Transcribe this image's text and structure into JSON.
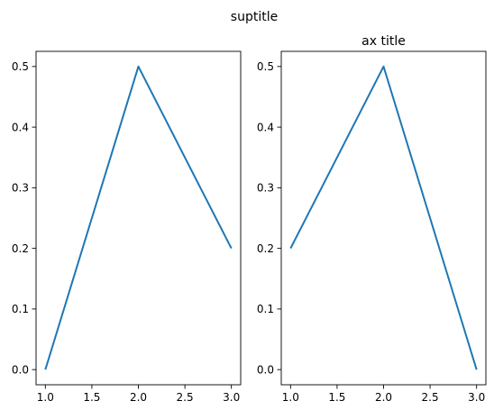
{
  "figure": {
    "suptitle": "suptitle"
  },
  "colors": {
    "series": "#1f77b4",
    "axes": "#000000",
    "background": "#ffffff"
  },
  "chart_data": [
    {
      "type": "line",
      "title": "",
      "xlabel": "",
      "ylabel": "",
      "xlim": [
        0.9,
        3.1
      ],
      "ylim": [
        -0.025,
        0.525
      ],
      "xticks": [
        1.0,
        1.5,
        2.0,
        2.5,
        3.0
      ],
      "xtick_labels": [
        "1.0",
        "1.5",
        "2.0",
        "2.5",
        "3.0"
      ],
      "yticks": [
        0.0,
        0.1,
        0.2,
        0.3,
        0.4,
        0.5
      ],
      "ytick_labels": [
        "0.0",
        "0.1",
        "0.2",
        "0.3",
        "0.4",
        "0.5"
      ],
      "grid": false,
      "series": [
        {
          "x": [
            1,
            2,
            3
          ],
          "y": [
            0.0,
            0.5,
            0.2
          ]
        }
      ]
    },
    {
      "type": "line",
      "title": "ax title",
      "xlabel": "",
      "ylabel": "",
      "xlim": [
        0.9,
        3.1
      ],
      "ylim": [
        -0.025,
        0.525
      ],
      "xticks": [
        1.0,
        1.5,
        2.0,
        2.5,
        3.0
      ],
      "xtick_labels": [
        "1.0",
        "1.5",
        "2.0",
        "2.5",
        "3.0"
      ],
      "yticks": [
        0.0,
        0.1,
        0.2,
        0.3,
        0.4,
        0.5
      ],
      "ytick_labels": [
        "0.0",
        "0.1",
        "0.2",
        "0.3",
        "0.4",
        "0.5"
      ],
      "grid": false,
      "series": [
        {
          "x": [
            1,
            2,
            3
          ],
          "y": [
            0.2,
            0.5,
            0.0
          ]
        }
      ]
    }
  ]
}
